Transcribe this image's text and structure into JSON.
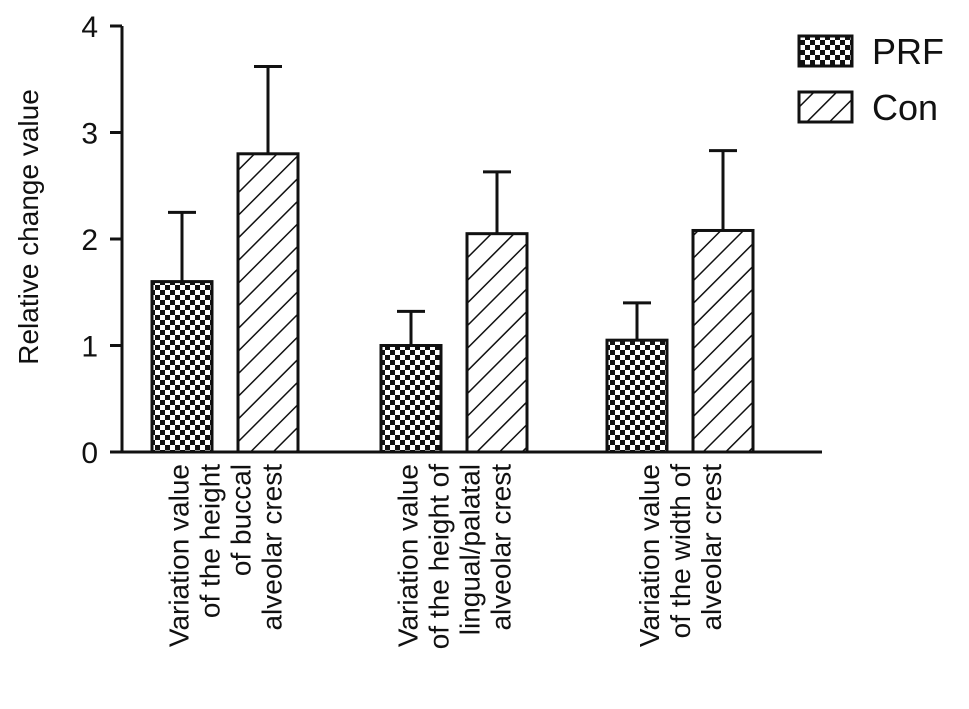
{
  "chart_data": {
    "type": "bar",
    "title": "",
    "xlabel": "",
    "ylabel": "Relative change value",
    "ylim": [
      0,
      4
    ],
    "yticks": [
      0,
      1,
      2,
      3,
      4
    ],
    "grid": false,
    "legend_position": "top-right",
    "categories": [
      [
        "Variation value",
        "of the height",
        "of buccal",
        "alveolar crest"
      ],
      [
        "Variation value",
        "of the height of",
        "lingual/palatal",
        "alveolar crest"
      ],
      [
        "Variation value",
        "of the width of",
        "alveolar crest"
      ]
    ],
    "series": [
      {
        "name": "PRF",
        "pattern": "checkerboard",
        "values": [
          1.6,
          1.0,
          1.05
        ],
        "errors": [
          0.65,
          0.32,
          0.35
        ]
      },
      {
        "name": "Con",
        "pattern": "diagonal-hatch",
        "values": [
          2.8,
          2.05,
          2.08
        ],
        "errors": [
          0.82,
          0.58,
          0.75
        ]
      }
    ]
  }
}
